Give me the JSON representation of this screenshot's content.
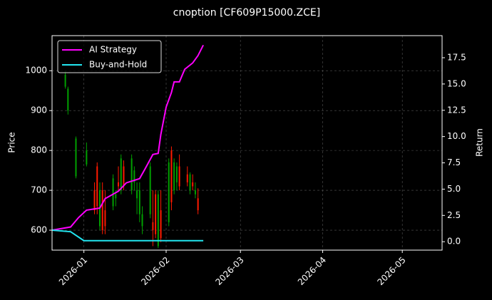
{
  "chart_data": {
    "type": "candlestick",
    "title": "cnoption [CF609P15000.ZCE]",
    "ylabel": "Price",
    "y2label": "Return",
    "xlim": [
      20442,
      20589
    ],
    "xticks": [
      {
        "value": 20454,
        "label": "2026-01"
      },
      {
        "value": 20485,
        "label": "2026-02"
      },
      {
        "value": 20513,
        "label": "2026-03"
      },
      {
        "value": 20544,
        "label": "2026-04"
      },
      {
        "value": 20574,
        "label": "2026-05"
      }
    ],
    "ylim": [
      550,
      1088
    ],
    "yticks": [
      600,
      700,
      800,
      900,
      1000
    ],
    "y2lim": [
      -0.8,
      19.6
    ],
    "y2ticks": [
      {
        "value": 0,
        "label": "0.0"
      },
      2.5,
      {
        "value": 5,
        "label": "5.0"
      },
      7.5,
      {
        "value": 10,
        "label": "10.0"
      },
      12.5,
      {
        "value": 15,
        "label": "15.0"
      },
      17.5
    ],
    "grid": true,
    "legend": "upper left",
    "up_color": "#00a000",
    "down_color": "#ff1a00",
    "candles": {
      "x": [
        20447,
        20448,
        20451,
        20455,
        20458,
        20459,
        20460,
        20461,
        20462,
        20465,
        20466,
        20467,
        20468,
        20469,
        20472,
        20473,
        20474,
        20475,
        20476,
        20479,
        20480,
        20481,
        20482,
        20483,
        20486,
        20487,
        20488,
        20489,
        20490,
        20493,
        20494,
        20495,
        20496,
        20497
      ],
      "open": [
        960,
        900,
        735,
        765,
        700,
        760,
        610,
        700,
        650,
        660,
        680,
        720,
        700,
        760,
        700,
        720,
        680,
        640,
        610,
        640,
        620,
        690,
        560,
        650,
        620,
        800,
        700,
        720,
        760,
        740,
        700,
        720,
        690,
        680
      ],
      "high": [
        1000,
        960,
        835,
        820,
        720,
        770,
        720,
        720,
        700,
        740,
        700,
        760,
        790,
        775,
        790,
        760,
        720,
        720,
        660,
        770,
        700,
        700,
        700,
        700,
        780,
        810,
        780,
        770,
        790,
        760,
        745,
        740,
        720,
        705
      ],
      "low": [
        955,
        890,
        730,
        760,
        640,
        640,
        600,
        590,
        590,
        650,
        660,
        700,
        690,
        700,
        690,
        700,
        640,
        620,
        590,
        630,
        560,
        580,
        555,
        570,
        610,
        650,
        690,
        700,
        700,
        710,
        690,
        700,
        680,
        640
      ],
      "close": [
        990,
        955,
        830,
        800,
        650,
        660,
        700,
        600,
        610,
        730,
        690,
        710,
        780,
        710,
        780,
        750,
        700,
        700,
        640,
        760,
        600,
        590,
        690,
        580,
        770,
        670,
        770,
        760,
        710,
        720,
        740,
        710,
        700,
        650
      ]
    },
    "series": [
      {
        "name": "AI Strategy",
        "color": "#ff00ff",
        "axis": "y2",
        "x": [
          20442,
          20449,
          20452,
          20455,
          20460,
          20462,
          20467,
          20470,
          20475,
          20477,
          20480,
          20482,
          20483,
          20485,
          20487,
          20488,
          20490,
          20492,
          20495,
          20497,
          20499
        ],
        "values": [
          1.1,
          1.4,
          2.3,
          3.0,
          3.2,
          4.1,
          4.8,
          5.6,
          6.0,
          6.9,
          8.3,
          8.4,
          10.2,
          12.8,
          14.2,
          15.2,
          15.2,
          16.4,
          17.0,
          17.7,
          18.7
        ]
      },
      {
        "name": "Buy-and-Hold",
        "color": "#22e5f0",
        "axis": "y2",
        "x": [
          20442,
          20449,
          20454,
          20499
        ],
        "values": [
          1.1,
          0.95,
          0.1,
          0.1
        ]
      }
    ]
  }
}
